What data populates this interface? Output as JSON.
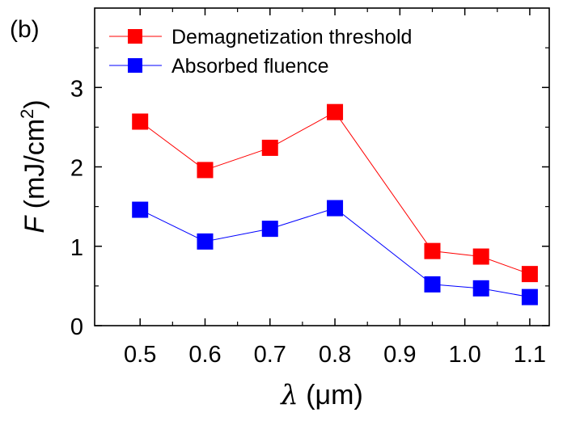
{
  "chart_data": {
    "type": "line",
    "panel_label": "(b)",
    "xlabel": {
      "symbol": "λ",
      "unit": "(μm)"
    },
    "ylabel": {
      "symbol": "F",
      "unit": "(mJ/cm",
      "sup": "2",
      "close": ")"
    },
    "x": [
      0.5,
      0.6,
      0.7,
      0.8,
      0.95,
      1.025,
      1.1
    ],
    "xticks": [
      0.5,
      0.6,
      0.7,
      0.8,
      0.9,
      1.0,
      1.1
    ],
    "xtick_labels": [
      "0.5",
      "0.6",
      "0.7",
      "0.8",
      "0.9",
      "1.0",
      "1.1"
    ],
    "yticks": [
      0,
      1,
      2,
      3
    ],
    "ytick_labels": [
      "0",
      "1",
      "2",
      "3"
    ],
    "xlim": [
      0.43,
      1.13
    ],
    "ylim": [
      0,
      4.0
    ],
    "grid": false,
    "legend_position": "top-left",
    "series": [
      {
        "name": "Demagnetization threshold",
        "color": "#ff0000",
        "marker": "square",
        "values": [
          2.57,
          1.96,
          2.24,
          2.69,
          0.94,
          0.87,
          0.65
        ]
      },
      {
        "name": "Absorbed fluence",
        "color": "#0000ff",
        "marker": "square",
        "values": [
          1.46,
          1.06,
          1.22,
          1.48,
          0.52,
          0.47,
          0.36
        ]
      }
    ]
  }
}
